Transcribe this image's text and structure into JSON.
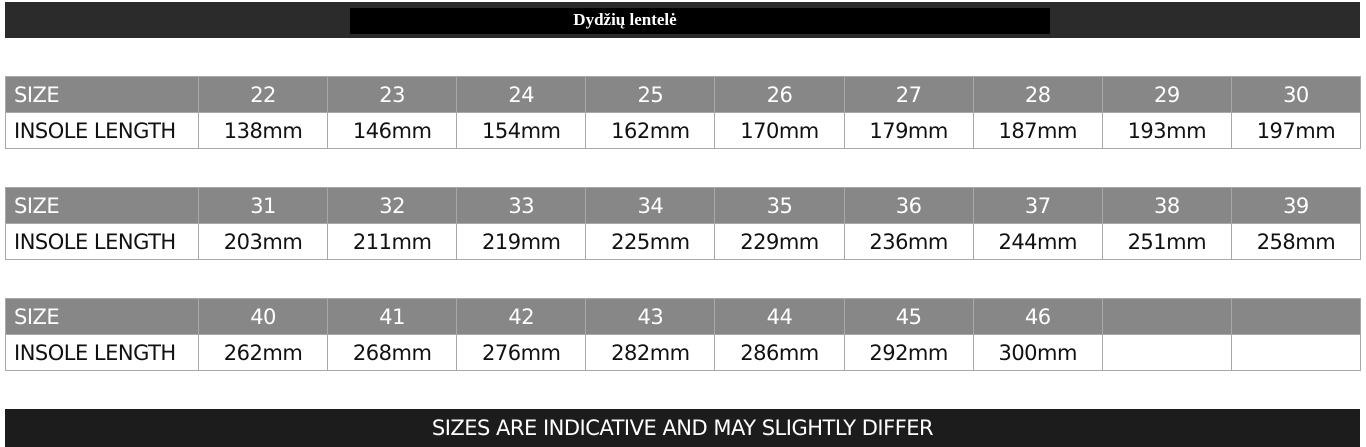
{
  "header": {
    "title": "Dydžių lentelė"
  },
  "labels": {
    "size": "SIZE",
    "insole": "INSOLE LENGTH"
  },
  "tables": [
    {
      "sizes": [
        "22",
        "23",
        "24",
        "25",
        "26",
        "27",
        "28",
        "29",
        "30"
      ],
      "lengths": [
        "138mm",
        "146mm",
        "154mm",
        "162mm",
        "170mm",
        "179mm",
        "187mm",
        "193mm",
        "197mm"
      ]
    },
    {
      "sizes": [
        "31",
        "32",
        "33",
        "34",
        "35",
        "36",
        "37",
        "38",
        "39"
      ],
      "lengths": [
        "203mm",
        "211mm",
        "219mm",
        "225mm",
        "229mm",
        "236mm",
        "244mm",
        "251mm",
        "258mm"
      ]
    },
    {
      "sizes": [
        "40",
        "41",
        "42",
        "43",
        "44",
        "45",
        "46",
        "",
        ""
      ],
      "lengths": [
        "262mm",
        "268mm",
        "276mm",
        "282mm",
        "286mm",
        "292mm",
        "300mm",
        "",
        ""
      ]
    }
  ],
  "footer": {
    "note": "SIZES ARE INDICATIVE AND MAY SLIGHTLY DIFFER"
  },
  "colors": {
    "header_cell": "#878787",
    "footer_bg": "#1c1c1c",
    "border": "#a8a8a8"
  }
}
